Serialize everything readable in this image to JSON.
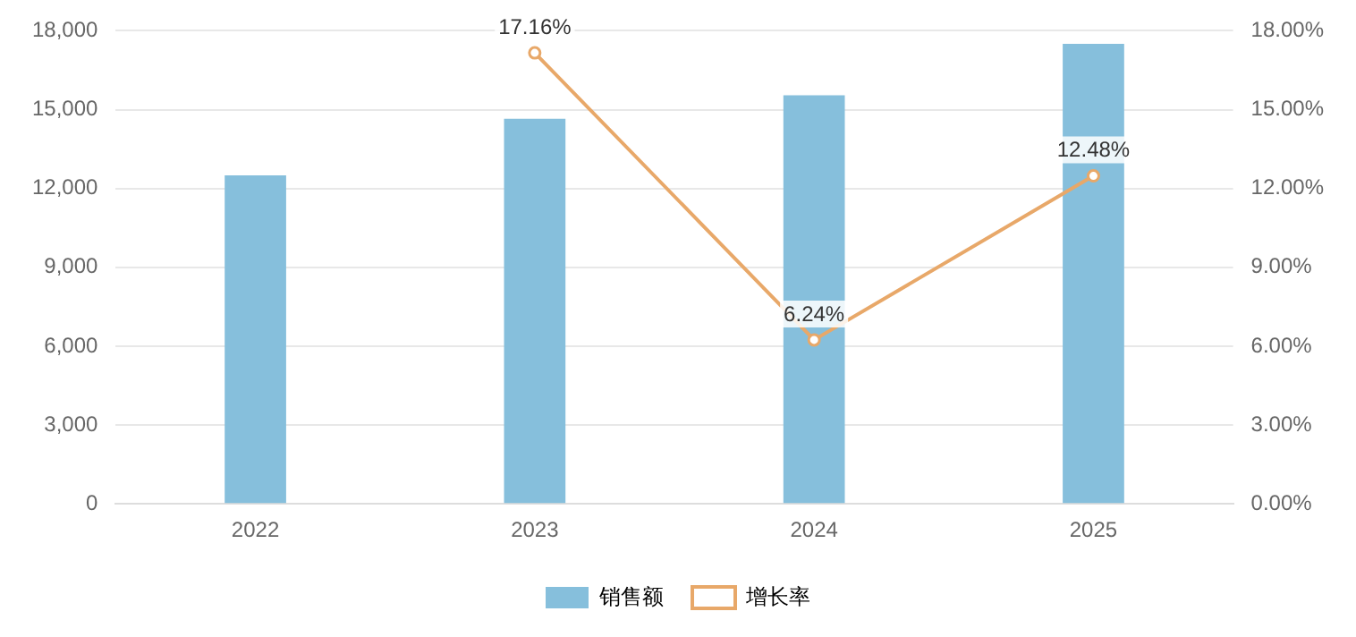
{
  "chart_data": {
    "type": "bar",
    "categories": [
      "2022",
      "2023",
      "2024",
      "2025"
    ],
    "series": [
      {
        "name": "销售额",
        "color": "#86bfdc",
        "values": [
          12500,
          14650,
          15550,
          17500
        ]
      },
      {
        "name": "增长率",
        "type": "line",
        "axis": "y2",
        "color": "#e8a869",
        "values": [
          null,
          17.16,
          6.24,
          12.48
        ],
        "value_labels": [
          null,
          "17.16%",
          "6.24%",
          "12.48%"
        ]
      }
    ],
    "ylim": [
      0,
      18000
    ],
    "yticks": [
      {
        "value": 0,
        "label": "0"
      },
      {
        "value": 3000,
        "label": "3,000"
      },
      {
        "value": 6000,
        "label": "6,000"
      },
      {
        "value": 9000,
        "label": "9,000"
      },
      {
        "value": 12000,
        "label": "12,000"
      },
      {
        "value": 15000,
        "label": "15,000"
      },
      {
        "value": 18000,
        "label": "18,000"
      }
    ],
    "y2lim": [
      0,
      18
    ],
    "y2ticks": [
      {
        "value": 0,
        "label": "0.00%"
      },
      {
        "value": 3,
        "label": "3.00%"
      },
      {
        "value": 6,
        "label": "6.00%"
      },
      {
        "value": 9,
        "label": "9.00%"
      },
      {
        "value": 12,
        "label": "12.00%"
      },
      {
        "value": 15,
        "label": "15.00%"
      },
      {
        "value": 18,
        "label": "18.00%"
      }
    ],
    "grid": "y",
    "legend": "bottom",
    "marker": "circle",
    "line_style": "solid"
  }
}
